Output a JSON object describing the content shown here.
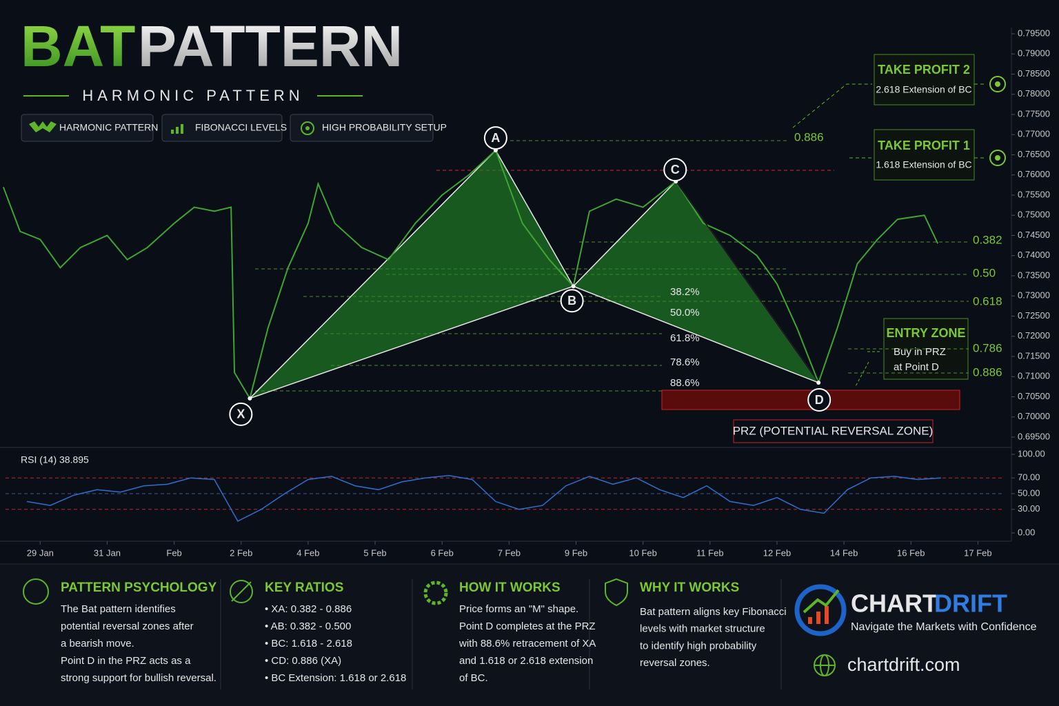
{
  "header": {
    "title_a": "BAT",
    "title_b": "PATTERN",
    "subtitle": "HARMONIC PATTERN",
    "badges": [
      "HARMONIC PATTERN",
      "FIBONACCI LEVELS",
      "HIGH PROBABILITY SETUP"
    ]
  },
  "chart_data": [
    {
      "type": "line",
      "color": "#3fa535",
      "x": [
        -0.55,
        -0.3,
        0,
        0.3,
        0.6,
        1.0,
        1.3,
        1.6,
        2.0,
        2.3,
        2.6,
        2.85,
        2.9,
        3.13,
        3.4,
        3.7,
        4.0,
        4.15,
        4.4,
        4.8,
        5.2,
        5.6,
        6.0,
        6.4,
        6.8,
        7.2,
        7.6,
        7.96,
        8.2,
        8.6,
        9.0,
        9.49,
        9.9,
        10.3,
        10.7,
        11.0,
        11.3,
        11.62,
        11.9,
        12.2,
        12.5,
        12.8,
        13.2,
        13.4
      ],
      "values": [
        0.757,
        0.746,
        0.744,
        0.737,
        0.742,
        0.745,
        0.739,
        0.742,
        0.748,
        0.752,
        0.751,
        0.752,
        0.711,
        0.7046,
        0.722,
        0.737,
        0.748,
        0.7578,
        0.748,
        0.742,
        0.739,
        0.748,
        0.755,
        0.76,
        0.7661,
        0.748,
        0.739,
        0.7324,
        0.751,
        0.754,
        0.752,
        0.7584,
        0.748,
        0.745,
        0.74,
        0.733,
        0.722,
        0.7085,
        0.722,
        0.738,
        0.744,
        0.749,
        0.75,
        0.743
      ],
      "xlim": [
        -0.6,
        14.5
      ],
      "ylim": [
        0.695,
        0.7975
      ],
      "yticks": [
        {
          "value": 0.795,
          "label": "0.79500"
        },
        {
          "value": 0.79,
          "label": "0.79000"
        },
        {
          "value": 0.785,
          "label": "0.78500"
        },
        {
          "value": 0.78,
          "label": "0.78000"
        },
        {
          "value": 0.775,
          "label": "0.77500"
        },
        {
          "value": 0.77,
          "label": "0.77000"
        },
        {
          "value": 0.765,
          "label": "0.76500"
        },
        {
          "value": 0.76,
          "label": "0.76000"
        },
        {
          "value": 0.755,
          "label": "0.75500"
        },
        {
          "value": 0.75,
          "label": "0.75000"
        },
        {
          "value": 0.745,
          "label": "0.74500"
        },
        {
          "value": 0.74,
          "label": "0.74000"
        },
        {
          "value": 0.735,
          "label": "0.73500"
        },
        {
          "value": 0.73,
          "label": "0.73000"
        },
        {
          "value": 0.725,
          "label": "0.72500"
        },
        {
          "value": 0.72,
          "label": "0.72000"
        },
        {
          "value": 0.715,
          "label": "0.71500"
        },
        {
          "value": 0.71,
          "label": "0.71000"
        },
        {
          "value": 0.705,
          "label": "0.70500"
        },
        {
          "value": 0.7,
          "label": "0.70000"
        },
        {
          "value": 0.695,
          "label": "0.69500"
        }
      ],
      "points": {
        "labels": [
          "X",
          "A",
          "B",
          "C",
          "D"
        ],
        "x": [
          3.13,
          6.8,
          7.96,
          9.49,
          11.62
        ],
        "values": [
          0.7046,
          0.7661,
          0.7324,
          0.7584,
          0.7085
        ]
      },
      "fib_right": [
        "0.886",
        "0.382",
        "0.50",
        "0.618",
        "0.786",
        "0.886"
      ],
      "fib_mid": [
        "38.2%",
        "50.0%",
        "61.8%",
        "78.6%",
        "88.6%"
      ],
      "take_profit": [
        {
          "title": "TAKE PROFIT 2",
          "text": "2.618 Extension of BC"
        },
        {
          "title": "TAKE PROFIT 1",
          "text": "1.618 Extension of BC"
        }
      ],
      "entry": {
        "title": "ENTRY ZONE",
        "lines": [
          "Buy in PRZ",
          "at Point D"
        ]
      },
      "prz": "PRZ (POTENTIAL REVERSAL ZONE)"
    },
    {
      "type": "line",
      "title": "RSI (14) 38.895",
      "color": "#2f6fd1",
      "x": [
        -0.2,
        0.15,
        0.5,
        0.85,
        1.2,
        1.55,
        1.9,
        2.25,
        2.6,
        2.95,
        3.3,
        3.65,
        4.0,
        4.35,
        4.7,
        5.05,
        5.4,
        5.75,
        6.1,
        6.45,
        6.8,
        7.15,
        7.5,
        7.85,
        8.2,
        8.55,
        8.9,
        9.25,
        9.6,
        9.95,
        10.3,
        10.65,
        11.0,
        11.35,
        11.7,
        12.05,
        12.4,
        12.75,
        13.1,
        13.45
      ],
      "values": [
        40,
        35,
        48,
        55,
        52,
        60,
        62,
        70,
        68,
        15,
        30,
        50,
        68,
        72,
        60,
        55,
        65,
        70,
        73,
        68,
        40,
        30,
        35,
        60,
        72,
        62,
        70,
        55,
        45,
        60,
        40,
        35,
        45,
        30,
        25,
        55,
        70,
        72,
        68,
        70
      ],
      "xlim": [
        -0.6,
        14.5
      ],
      "ylim": [
        0,
        100
      ],
      "yticks": [
        {
          "value": 100,
          "label": "100.00"
        },
        {
          "value": 70,
          "label": "70.00"
        },
        {
          "value": 50,
          "label": "50.00"
        },
        {
          "value": 30,
          "label": "30.00"
        },
        {
          "value": 0,
          "label": "0.00"
        }
      ],
      "reference_lines": [
        70,
        50,
        30
      ],
      "xticks": [
        {
          "value": 0,
          "label": "29 Jan"
        },
        {
          "value": 1,
          "label": "31 Jan"
        },
        {
          "value": 2,
          "label": "Feb"
        },
        {
          "value": 3,
          "label": "2 Feb"
        },
        {
          "value": 4,
          "label": "4 Feb"
        },
        {
          "value": 5,
          "label": "5 Feb"
        },
        {
          "value": 6,
          "label": "6 Feb"
        },
        {
          "value": 7,
          "label": "7 Feb"
        },
        {
          "value": 8,
          "label": "9 Feb"
        },
        {
          "value": 9,
          "label": "10 Feb"
        },
        {
          "value": 10,
          "label": "11 Feb"
        },
        {
          "value": 11,
          "label": "12 Feb"
        },
        {
          "value": 12,
          "label": "14 Feb"
        },
        {
          "value": 13,
          "label": "16 Feb"
        },
        {
          "value": 14,
          "label": "17 Feb"
        }
      ]
    }
  ],
  "footer": {
    "sections": [
      {
        "title": "PATTERN PSYCHOLOGY",
        "lines": [
          "The Bat pattern identifies",
          "potential reversal zones after",
          "a bearish move.",
          "Point D in the PRZ acts as a",
          "strong support for bullish reversal."
        ]
      },
      {
        "title": "KEY RATIOS",
        "lines": [
          "• XA: 0.382 - 0.886",
          "• AB: 0.382 - 0.500",
          "• BC: 1.618 - 2.618",
          "• CD: 0.886 (XA)",
          "• BC Extension: 1.618 or 2.618"
        ]
      },
      {
        "title": "HOW IT WORKS",
        "lines": [
          "Price forms an \"M\" shape.",
          "Point D completes at the PRZ",
          "with 88.6% retracement of XA",
          "and 1.618 or 2.618 extension",
          "of BC."
        ]
      },
      {
        "title": "WHY IT WORKS",
        "lines": [
          "Bat pattern aligns key Fibonacci",
          "levels with market structure",
          "to identify high probability",
          "reversal zones."
        ]
      }
    ],
    "brand_a": "CHART",
    "brand_b": "DRIFT",
    "tagline": "Navigate the Markets with Confidence",
    "url": "chartdrift.com"
  }
}
